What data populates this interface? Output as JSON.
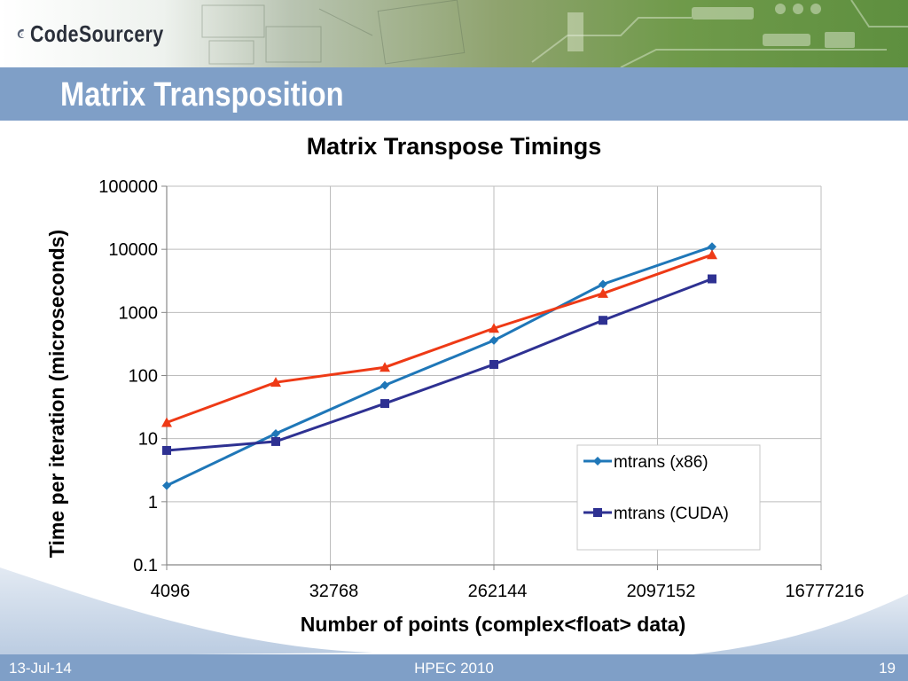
{
  "header": {
    "logo_text": "CodeSourcery",
    "slide_title": "Matrix Transposition"
  },
  "footer": {
    "date": "13-Jul-14",
    "event": "HPEC 2010",
    "page": "19"
  },
  "colors": {
    "title_bar": "#7f9fc7",
    "x86": "#1f77b8",
    "cuda_ir": "#ee3a16",
    "cuda": "#2e3192"
  },
  "chart_data": {
    "type": "line",
    "title": "Matrix Transpose Timings",
    "xlabel": "Number of points (complex<float> data)",
    "ylabel": "Time per iteration (microseconds)",
    "x_scale": "log2",
    "y_scale": "log10",
    "xlim": [
      4096,
      16777216
    ],
    "ylim": [
      0.1,
      100000
    ],
    "x_ticks": [
      "4096",
      "32768",
      "262144",
      "2097152",
      "16777216"
    ],
    "y_ticks": [
      "100000",
      "10000",
      "1000",
      "100",
      "10",
      "1",
      "0.1"
    ],
    "x": [
      4096,
      16384,
      65536,
      262144,
      1048576,
      4194304
    ],
    "grid": "vertical and horizontal major gridlines",
    "legend_position": "bottom-right",
    "series": [
      {
        "name": "mtrans (x86)",
        "marker": "diamond",
        "values": [
          1.8,
          12,
          70,
          360,
          2800,
          11000
        ]
      },
      {
        "name": "",
        "marker": "triangle",
        "values": [
          18,
          78,
          135,
          560,
          2000,
          8200
        ]
      },
      {
        "name": "mtrans (CUDA)",
        "marker": "square",
        "values": [
          6.5,
          9,
          36,
          150,
          750,
          3400
        ]
      }
    ]
  }
}
